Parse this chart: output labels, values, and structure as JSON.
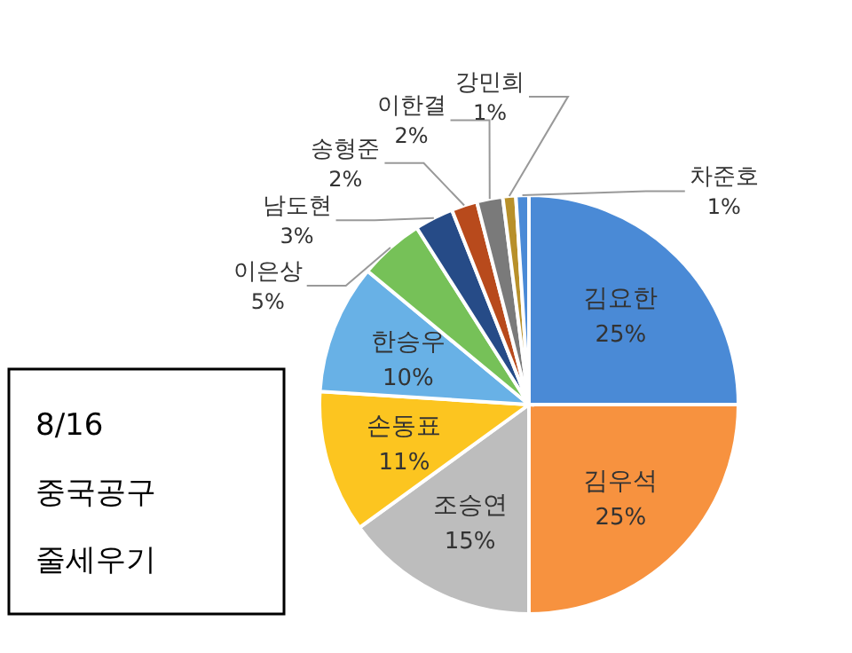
{
  "chart_data": {
    "type": "pie",
    "categories": [
      "김요한",
      "김우석",
      "조승연",
      "손동표",
      "한승우",
      "이은상",
      "남도현",
      "송형준",
      "이한결",
      "강민희",
      "차준호"
    ],
    "values": [
      25,
      25,
      15,
      11,
      10,
      5,
      3,
      2,
      2,
      1,
      1
    ],
    "colors": [
      "#4a8ad6",
      "#f7923f",
      "#bdbdbd",
      "#fcc520",
      "#68b1e6",
      "#76c158",
      "#264b87",
      "#b84a1c",
      "#7a7a7a",
      "#b8902a",
      "#4a8ad6"
    ],
    "value_labels": [
      "25%",
      "25%",
      "15%",
      "11%",
      "10%",
      "5%",
      "3%",
      "2%",
      "2%",
      "1%",
      "1%"
    ],
    "annotations": [
      "8/16 중국공구 줄세우기"
    ]
  }
}
